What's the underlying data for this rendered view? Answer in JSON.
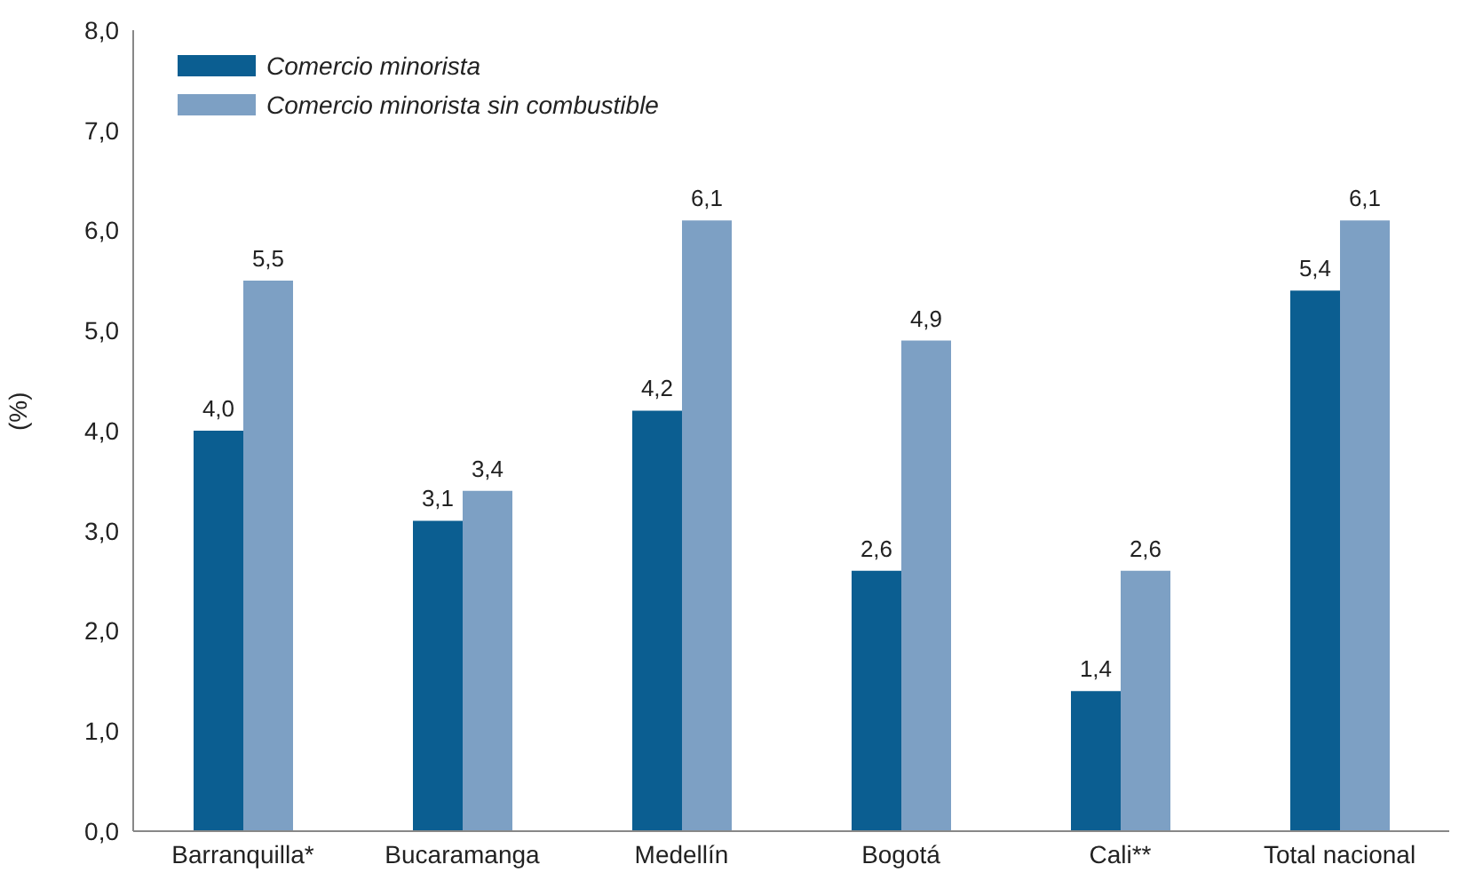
{
  "chart_data": {
    "type": "bar",
    "ylabel": "(%)",
    "categories": [
      "Barranquilla*",
      "Bucaramanga",
      "Medellín",
      "Bogotá",
      "Cali**",
      "Total nacional"
    ],
    "series": [
      {
        "name": "Comercio minorista",
        "color": "#0b5e91",
        "values": [
          4.0,
          3.1,
          4.2,
          2.6,
          1.4,
          5.4
        ],
        "value_labels": [
          "4,0",
          "3,1",
          "4,2",
          "2,6",
          "1,4",
          "5,4"
        ]
      },
      {
        "name": "Comercio minorista sin combustible",
        "color": "#7da0c4",
        "values": [
          5.5,
          3.4,
          6.1,
          4.9,
          2.6,
          6.1
        ],
        "value_labels": [
          "5,5",
          "3,4",
          "6,1",
          "4,9",
          "2,6",
          "6,1"
        ]
      }
    ],
    "ylim": [
      0,
      8
    ],
    "yticks": [
      {
        "value": 0,
        "label": "0,0"
      },
      {
        "value": 1,
        "label": "1,0"
      },
      {
        "value": 2,
        "label": "2,0"
      },
      {
        "value": 3,
        "label": "3,0"
      },
      {
        "value": 4,
        "label": "4,0"
      },
      {
        "value": 5,
        "label": "5,0"
      },
      {
        "value": 6,
        "label": "6,0"
      },
      {
        "value": 7,
        "label": "7,0"
      },
      {
        "value": 8,
        "label": "8,0"
      }
    ],
    "grid": false,
    "legend": "top left"
  }
}
